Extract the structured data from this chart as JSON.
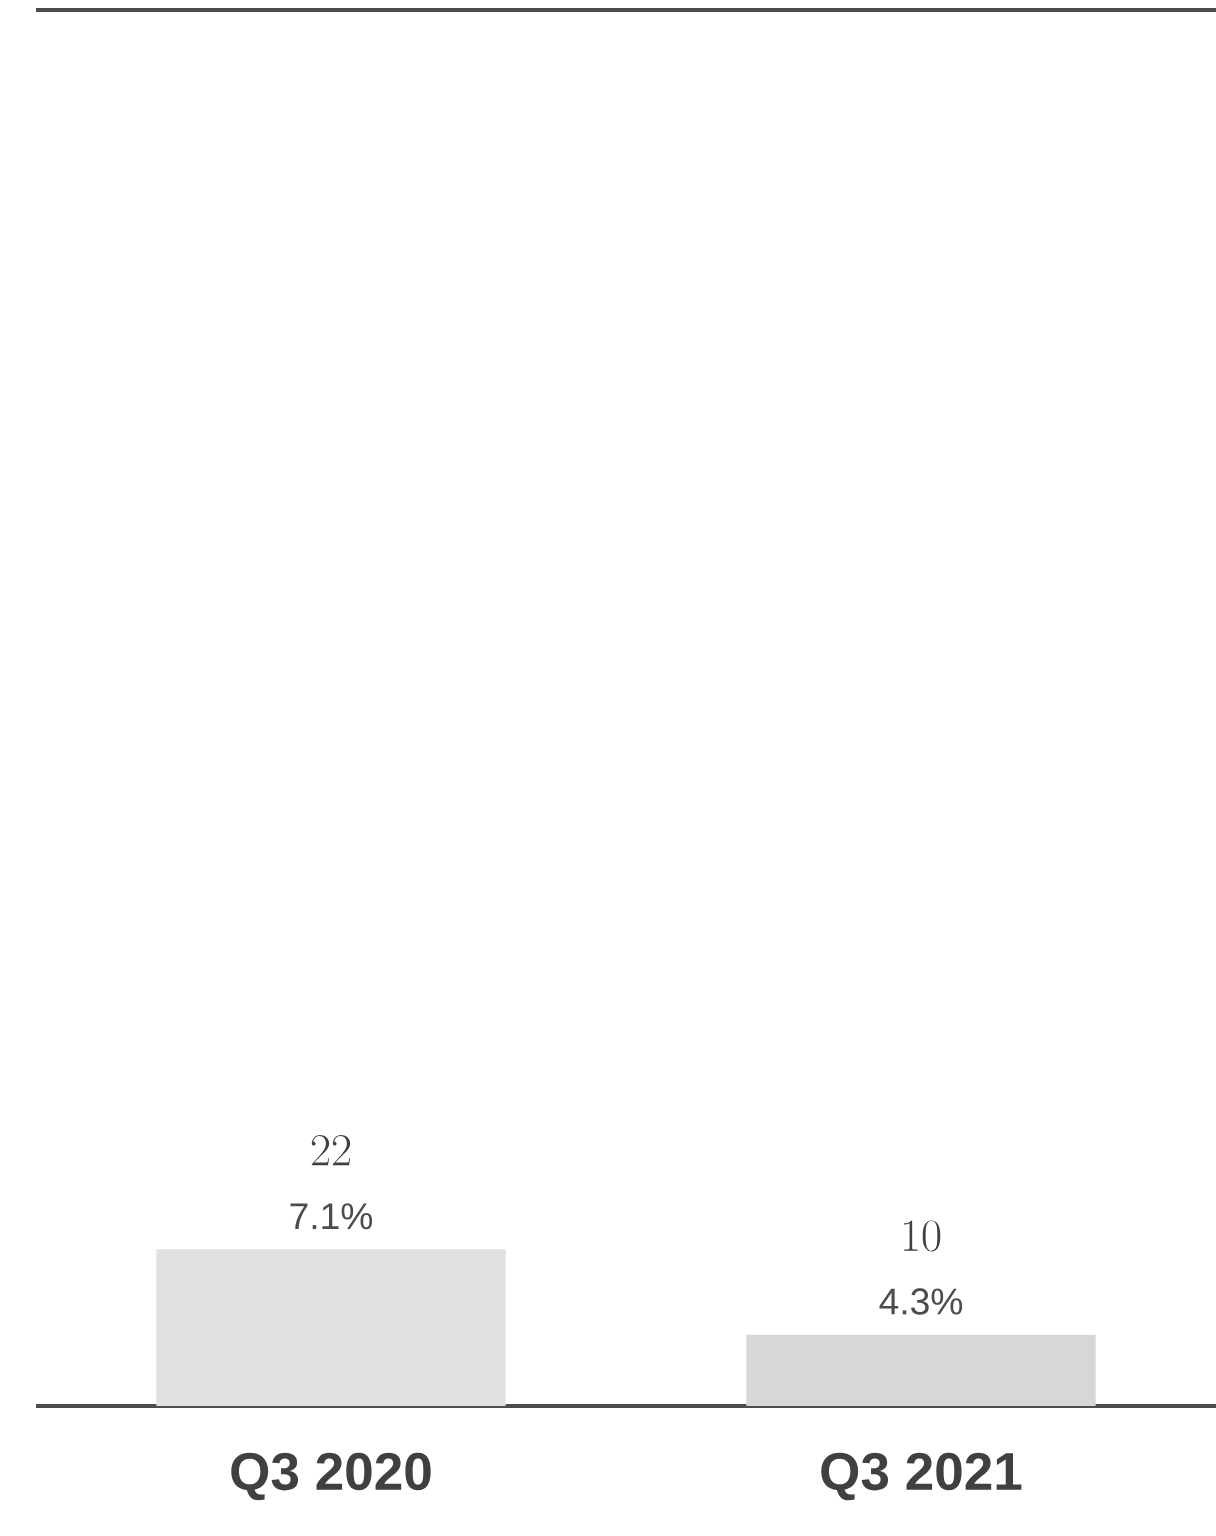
{
  "chart_data": {
    "type": "bar",
    "categories": [
      "Q3 2020",
      "Q3 2021"
    ],
    "values": [
      22,
      10
    ],
    "colors": [
      "#e1e1e1",
      "#d7d7d7"
    ],
    "data_labels": true,
    "ylim": [
      0,
      196
    ],
    "annotations": [
      {
        "text": "7.1%",
        "x": "Q3 2020",
        "y": 22
      },
      {
        "text": "4.3%",
        "x": "Q3 2021",
        "y": 10
      }
    ]
  }
}
